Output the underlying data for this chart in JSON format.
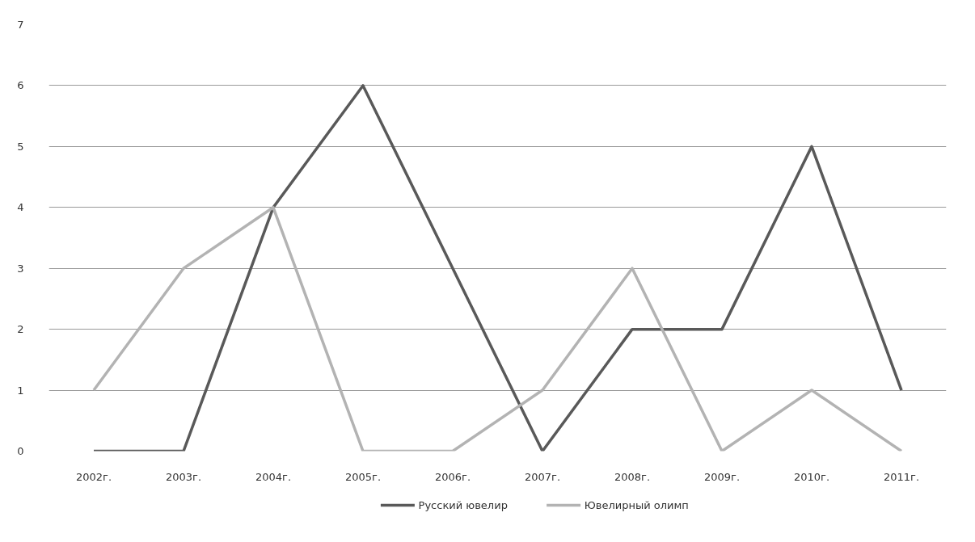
{
  "chart_data": {
    "type": "line",
    "categories": [
      "2002г.",
      "2003г.",
      "2004г.",
      "2005г.",
      "2006г.",
      "2007г.",
      "2008г.",
      "2009г.",
      "2010г.",
      "2011г."
    ],
    "series": [
      {
        "name": "Русский ювелир",
        "color": "#595959",
        "values": [
          0,
          0,
          4,
          6,
          3,
          0,
          2,
          2,
          5,
          1
        ]
      },
      {
        "name": "Ювелирный олимп",
        "color": "#b3b3b3",
        "values": [
          1,
          3,
          4,
          0,
          0,
          1,
          3,
          0,
          1,
          0
        ]
      }
    ],
    "ylim": [
      0,
      7
    ],
    "yticks": [
      0,
      1,
      2,
      3,
      4,
      5,
      6,
      7
    ],
    "grid": "y",
    "legend": "bottom",
    "marker": "none",
    "line_style": "solid"
  }
}
